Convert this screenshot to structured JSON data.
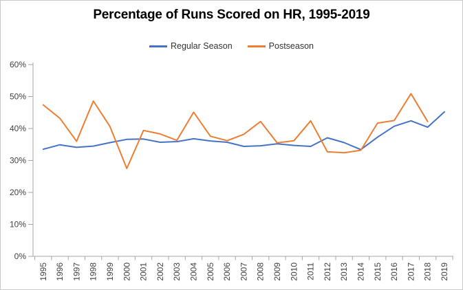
{
  "chart_data": {
    "type": "line",
    "title": "Percentage of Runs Scored on HR, 1995-2019",
    "categories": [
      "1995",
      "1996",
      "1997",
      "1998",
      "1999",
      "2000",
      "2001",
      "2002",
      "2003",
      "2004",
      "2005",
      "2006",
      "2007",
      "2008",
      "2009",
      "2010",
      "2011",
      "2012",
      "2013",
      "2014",
      "2015",
      "2016",
      "2017",
      "2018",
      "2019"
    ],
    "series": [
      {
        "name": "Regular Season",
        "color": "#4472C4",
        "values": [
          33.5,
          34.9,
          34.1,
          34.5,
          35.6,
          36.6,
          36.7,
          35.7,
          35.9,
          36.8,
          36.1,
          35.7,
          34.4,
          34.6,
          35.2,
          34.7,
          34.4,
          37.1,
          35.6,
          33.4,
          37.3,
          40.7,
          42.4,
          40.4,
          45.2
        ]
      },
      {
        "name": "Postseason",
        "color": "#ED7D31",
        "values": [
          47.4,
          43.2,
          36.0,
          48.6,
          40.6,
          27.5,
          39.4,
          38.3,
          36.3,
          45.1,
          37.6,
          36.2,
          38.2,
          42.2,
          35.5,
          36.2,
          42.4,
          32.7,
          32.4,
          33.2,
          41.7,
          42.5,
          50.9,
          42.2,
          null
        ]
      }
    ],
    "xlabel": "",
    "ylabel": "",
    "ylim": [
      0,
      60
    ],
    "ytick_step": 10,
    "ytick_labels": [
      "0%",
      "10%",
      "20%",
      "30%",
      "40%",
      "50%",
      "60%"
    ],
    "grid": false,
    "legend_position": "top-center",
    "axis_color": "#A6A6A6",
    "label_color": "#404040",
    "title_color": "#000000",
    "border_color": "#C9C9C9",
    "background": "#FFFFFF"
  }
}
